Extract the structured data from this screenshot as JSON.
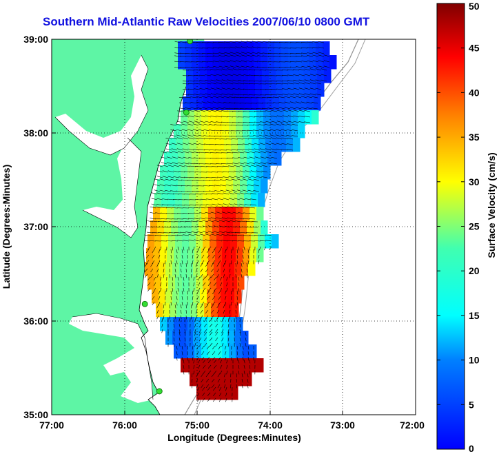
{
  "title": "Southern Mid-Atlantic Raw Velocities 2007/06/10 0800 GMT",
  "x_axis": {
    "label": "Longitude (Degrees:Minutes)",
    "ticks": [
      "77:00",
      "76:00",
      "75:00",
      "74:00",
      "73:00",
      "72:00"
    ]
  },
  "y_axis": {
    "label": "Latitude (Degrees:Minutes)",
    "ticks": [
      "39:00",
      "38:00",
      "37:00",
      "36:00",
      "35:00"
    ]
  },
  "colorbar": {
    "label": "Surface Velocity (cm/s)",
    "ticks": [
      "50",
      "45",
      "40",
      "35",
      "30",
      "25",
      "20",
      "15",
      "10",
      "5",
      "0"
    ],
    "min": 0,
    "max": 50,
    "colormap": "jet"
  },
  "colors": {
    "land": "#5ef5a5",
    "title": "#1010e0",
    "station_marker": "#33dd33"
  },
  "map_extent": {
    "lon_min": -77,
    "lon_max": -72,
    "lat_min": 35,
    "lat_max": 39
  },
  "stations_lonlat": [
    [
      -75.1,
      38.98
    ],
    [
      -75.15,
      38.22
    ],
    [
      -75.72,
      36.18
    ],
    [
      -75.52,
      35.25
    ]
  ]
}
